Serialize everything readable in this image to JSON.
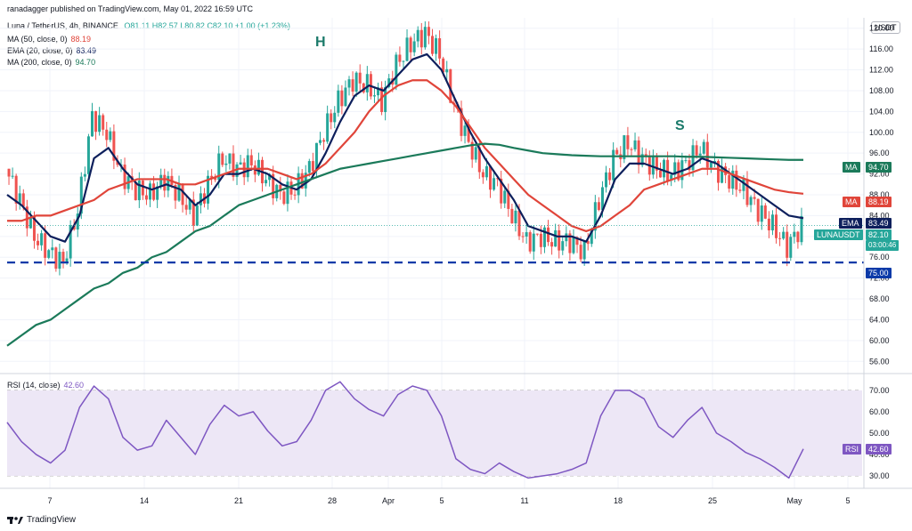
{
  "header": {
    "publisher": "ranadagger published on TradingView.com, May 01, 2022 16:59 UTC",
    "symbol": "Luna / TetherUS, 4h, BINANCE",
    "ohlc": "O81.11  H82.57  L80.82  C82.10  +1.00 (+1.23%)",
    "ind1": "MA (50, close, 0)",
    "ind1_val": "88.19",
    "ind2": "EMA (20, close, 0)",
    "ind2_val": "83.49",
    "ind3": "MA (200, close, 0)",
    "ind3_val": "94.70",
    "rsi_label": "RSI (14, close)",
    "rsi_val": "42.60"
  },
  "currency": "USDT",
  "annotations": {
    "head": "H",
    "shoulder": "S"
  },
  "badges": {
    "ma200_tag": "MA",
    "ma200_val": "94.70",
    "ma50_tag": "MA",
    "ma50_val": "88.19",
    "ema_tag": "EMA",
    "ema_val": "83.49",
    "price_tag": "LUNAUSDT",
    "price_val": "82.10",
    "countdown": "03:00:46",
    "support_val": "75.00",
    "rsi_tag": "RSI",
    "rsi_val": "42.60"
  },
  "footer": {
    "brand": "TradingView"
  },
  "colors": {
    "candle_up": "#26a69a",
    "candle_down": "#ef5350",
    "ema20": "#0d1f5c",
    "ma50": "#e0453a",
    "ma200": "#1b7a5a",
    "support": "#0b3aa8",
    "rsi": "#7e57c2",
    "rsi_band": "#ede7f6"
  },
  "chart_data": [
    {
      "type": "line",
      "title": "Luna / TetherUS, 4h, BINANCE",
      "ylim": [
        54,
        122
      ],
      "y_ticks": [
        "120.00",
        "116.00",
        "112.00",
        "108.00",
        "104.00",
        "100.00",
        "96.00",
        "92.00",
        "88.00",
        "84.00",
        "80.00",
        "76.00",
        "72.00",
        "68.00",
        "64.00",
        "60.00",
        "56.00"
      ],
      "x_ticks": [
        "7",
        "14",
        "21",
        "28",
        "Apr",
        "5",
        "11",
        "18",
        "25",
        "May",
        "5"
      ],
      "support_level": 75.0,
      "last_price": 82.1,
      "series": [
        {
          "name": "LUNAUSDT",
          "values": [
            93,
            87,
            80,
            77,
            75,
            85,
            103,
            100,
            92,
            89,
            88,
            91,
            88,
            84,
            90,
            95,
            93,
            94,
            91,
            88,
            89,
            93,
            100,
            106,
            110,
            109,
            106,
            113,
            117,
            119,
            115,
            105,
            98,
            92,
            90,
            84,
            79,
            80,
            79,
            79,
            77,
            87,
            95,
            98,
            95,
            93,
            92,
            94,
            97,
            93,
            91,
            89,
            85,
            82,
            78,
            82
          ]
        },
        {
          "name": "EMA (20, close, 0)",
          "values": [
            88,
            86,
            83,
            80,
            79,
            84,
            95,
            97,
            93,
            90,
            89,
            90,
            89,
            86,
            88,
            92,
            92,
            93,
            92,
            90,
            89,
            91,
            96,
            102,
            107,
            109,
            108,
            111,
            114,
            115,
            112,
            106,
            100,
            95,
            91,
            87,
            82,
            81,
            80,
            80,
            79,
            84,
            91,
            94,
            94,
            93,
            92,
            93,
            95,
            94,
            92,
            90,
            88,
            86,
            84,
            83.5
          ]
        },
        {
          "name": "MA (50, close, 0)",
          "values": [
            83,
            83,
            84,
            84,
            85,
            86,
            87,
            89,
            90,
            91,
            91,
            91,
            90,
            90,
            91,
            92,
            93,
            93,
            93,
            92,
            91,
            92,
            94,
            97,
            100,
            104,
            107,
            109,
            110,
            110,
            108,
            105,
            101,
            97,
            94,
            91,
            88,
            86,
            84,
            82,
            81,
            82,
            84,
            86,
            89,
            90,
            91,
            92,
            93,
            93,
            92,
            91,
            90,
            89,
            88.5,
            88.2
          ]
        },
        {
          "name": "MA (200, close, 0)",
          "values": [
            59,
            61,
            63,
            64,
            66,
            68,
            70,
            71,
            73,
            74,
            76,
            77,
            79,
            81,
            82,
            84,
            86,
            87,
            88,
            89,
            90,
            91,
            92,
            93,
            93.5,
            94,
            94.5,
            95,
            95.5,
            96,
            96.5,
            97,
            97.5,
            97.8,
            97.6,
            97,
            96.5,
            96,
            95.8,
            95.6,
            95.5,
            95.4,
            95.4,
            95.4,
            95.4,
            95.4,
            95.4,
            95.3,
            95.3,
            95.2,
            95.1,
            95,
            94.9,
            94.8,
            94.7,
            94.7
          ]
        }
      ]
    },
    {
      "type": "line",
      "title": "RSI (14, close)",
      "ylim": [
        25,
        77
      ],
      "y_ticks": [
        "70.00",
        "60.00",
        "50.00",
        "40.00",
        "30.00"
      ],
      "bands": [
        30,
        70
      ],
      "series": [
        {
          "name": "RSI (14, close)",
          "values": [
            55,
            46,
            40,
            36,
            42,
            62,
            72,
            66,
            48,
            42,
            44,
            56,
            48,
            40,
            54,
            63,
            58,
            60,
            51,
            44,
            46,
            56,
            70,
            74,
            66,
            61,
            58,
            68,
            72,
            70,
            58,
            38,
            33,
            31,
            36,
            32,
            29,
            30,
            31,
            33,
            36,
            58,
            70,
            70,
            66,
            53,
            48,
            56,
            62,
            50,
            46,
            41,
            38,
            34,
            29,
            42.6
          ]
        }
      ]
    }
  ]
}
